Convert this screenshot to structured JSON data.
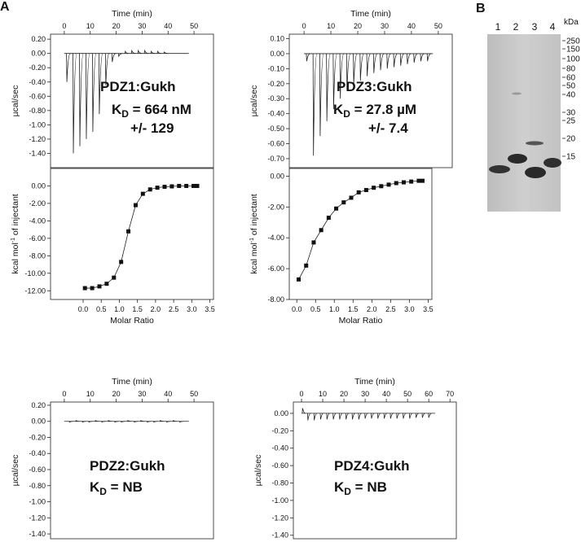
{
  "panel_label_a": "A",
  "chart_data": [
    {
      "type": "itc_raw",
      "x_label": "Time (min)",
      "y_label": "µcal/sec",
      "xlim": [
        -5.3,
        57.5
      ],
      "xticks": [
        0,
        10,
        20,
        30,
        40,
        50
      ],
      "ylim": [
        -1.6,
        0.27
      ],
      "yticks": [
        {
          "value": 0.2,
          "label": "0.20"
        },
        {
          "value": 0,
          "label": "0.00"
        },
        {
          "value": -0.2,
          "label": "-0.20"
        },
        {
          "value": -0.4,
          "label": "-0.40"
        },
        {
          "value": -0.6,
          "label": "-0.60"
        },
        {
          "value": -0.8,
          "label": "-0.80"
        },
        {
          "value": -1.0,
          "label": "-1.00"
        },
        {
          "value": -1.2,
          "label": "-1.20"
        },
        {
          "value": -1.4,
          "label": "-1.40"
        }
      ],
      "trace_span": [
        0,
        48
      ],
      "x": [
        1,
        3.5,
        6,
        8.5,
        11,
        13.5,
        16,
        18.5,
        21,
        23.5,
        26,
        28.5,
        31,
        33.5,
        36,
        38.5
      ],
      "values": [
        -0.4,
        -1.4,
        -1.3,
        -1.2,
        -1.1,
        -0.85,
        -0.45,
        -0.12,
        -0.04,
        0.03,
        0.04,
        0.04,
        0.04,
        0.03,
        0.03,
        0.02
      ],
      "annotation": {
        "name": "PDZ1:Gukh",
        "kd_symbol": "K",
        "kd_subscript": "D",
        "kd_value": " = 664 nM",
        "error": "+/- 129"
      }
    },
    {
      "type": "isotherm",
      "x_label": "Molar Ratio",
      "y_label": "kcal mol",
      "y_label_sup": "-1",
      "y_label_rest": " of injectant",
      "xlim": [
        -0.9,
        3.6
      ],
      "xticks": [
        {
          "value": 0,
          "label": "0.0"
        },
        {
          "value": 0.5,
          "label": "0.5"
        },
        {
          "value": 1,
          "label": "1.0"
        },
        {
          "value": 1.5,
          "label": "1.5"
        },
        {
          "value": 2,
          "label": "2.0"
        },
        {
          "value": 2.5,
          "label": "2.5"
        },
        {
          "value": 3,
          "label": "3.0"
        },
        {
          "value": 3.5,
          "label": "3.5"
        }
      ],
      "ylim": [
        -13,
        2
      ],
      "yticks": [
        {
          "value": 0,
          "label": "0.00"
        },
        {
          "value": -2,
          "label": "-2.00"
        },
        {
          "value": -4,
          "label": "-4.00"
        },
        {
          "value": -6,
          "label": "-6.00"
        },
        {
          "value": -8,
          "label": "-8.00"
        },
        {
          "value": -10,
          "label": "-10.00"
        },
        {
          "value": -12,
          "label": "-12.00"
        }
      ],
      "x": [
        0.05,
        0.25,
        0.45,
        0.65,
        0.85,
        1.05,
        1.25,
        1.45,
        1.65,
        1.85,
        2.05,
        2.25,
        2.45,
        2.65,
        2.85,
        3.05,
        3.15
      ],
      "values": [
        -11.7,
        -11.7,
        -11.5,
        -11.2,
        -10.5,
        -8.7,
        -5.2,
        -2.2,
        -0.9,
        -0.4,
        -0.2,
        -0.1,
        -0.05,
        0,
        0,
        0,
        0
      ]
    },
    {
      "type": "itc_raw",
      "x_label": "Time (min)",
      "y_label": "µcal/sec",
      "xlim": [
        -5.5,
        55.2
      ],
      "xticks": [
        0,
        10,
        20,
        30,
        40,
        50
      ],
      "ylim": [
        -0.76,
        0.13
      ],
      "yticks": [
        {
          "value": 0.1,
          "label": "0.10"
        },
        {
          "value": 0,
          "label": "0.00"
        },
        {
          "value": -0.1,
          "label": "-0.10"
        },
        {
          "value": -0.2,
          "label": "-0.20"
        },
        {
          "value": -0.3,
          "label": "-0.30"
        },
        {
          "value": -0.4,
          "label": "-0.40"
        },
        {
          "value": -0.5,
          "label": "-0.50"
        },
        {
          "value": -0.6,
          "label": "-0.60"
        },
        {
          "value": -0.7,
          "label": "-0.70"
        }
      ],
      "trace_span": [
        0,
        48
      ],
      "x": [
        1,
        3.5,
        6,
        8.5,
        11,
        13.5,
        16,
        18.5,
        21,
        23.5,
        26,
        28.5,
        31,
        33.5,
        36,
        38.5,
        41,
        43.5,
        46
      ],
      "values": [
        -0.05,
        -0.68,
        -0.55,
        -0.45,
        -0.37,
        -0.3,
        -0.25,
        -0.21,
        -0.18,
        -0.15,
        -0.13,
        -0.11,
        -0.1,
        -0.09,
        -0.08,
        -0.07,
        -0.06,
        -0.05,
        -0.05
      ],
      "annotation": {
        "name": "PDZ3:Gukh",
        "kd_symbol": "K",
        "kd_subscript": "D",
        "kd_value": " = 27.8 µM",
        "error": "+/- 7.4"
      }
    },
    {
      "type": "isotherm",
      "x_label": "Molar Ratio",
      "y_label": "kcal mol",
      "y_label_sup": "-1",
      "y_label_rest": " of injectant",
      "xlim": [
        -0.2,
        3.6
      ],
      "xticks": [
        {
          "value": 0,
          "label": "0.0"
        },
        {
          "value": 0.5,
          "label": "0.5"
        },
        {
          "value": 1,
          "label": "1.0"
        },
        {
          "value": 1.5,
          "label": "1.5"
        },
        {
          "value": 2,
          "label": "2.0"
        },
        {
          "value": 2.5,
          "label": "2.5"
        },
        {
          "value": 3,
          "label": "3.0"
        },
        {
          "value": 3.5,
          "label": "3.5"
        }
      ],
      "ylim": [
        -8,
        0.5
      ],
      "yticks": [
        {
          "value": 0,
          "label": "0.00"
        },
        {
          "value": -2,
          "label": "-2.00"
        },
        {
          "value": -4,
          "label": "-4.00"
        },
        {
          "value": -6,
          "label": "-6.00"
        },
        {
          "value": -8,
          "label": "-8.00"
        }
      ],
      "x": [
        0.05,
        0.25,
        0.45,
        0.65,
        0.85,
        1.05,
        1.25,
        1.45,
        1.65,
        1.85,
        2.05,
        2.25,
        2.45,
        2.65,
        2.85,
        3.05,
        3.25,
        3.35
      ],
      "values": [
        -6.7,
        -5.8,
        -4.3,
        -3.5,
        -2.7,
        -2.1,
        -1.7,
        -1.4,
        -1.05,
        -0.9,
        -0.75,
        -0.65,
        -0.55,
        -0.45,
        -0.4,
        -0.35,
        -0.3,
        -0.3
      ]
    },
    {
      "type": "itc_raw",
      "x_label": "Time (min)",
      "y_label": "µcal/sec",
      "xlim": [
        -5.3,
        57.5
      ],
      "xticks": [
        0,
        10,
        20,
        30,
        40,
        50
      ],
      "ylim": [
        -1.46,
        0.24
      ],
      "yticks": [
        {
          "value": 0.2,
          "label": "0.20"
        },
        {
          "value": 0,
          "label": "0.00"
        },
        {
          "value": -0.2,
          "label": "-0.20"
        },
        {
          "value": -0.4,
          "label": "-0.40"
        },
        {
          "value": -0.6,
          "label": "-0.60"
        },
        {
          "value": -0.8,
          "label": "-0.80"
        },
        {
          "value": -1.0,
          "label": "-1.00"
        },
        {
          "value": -1.2,
          "label": "-1.20"
        },
        {
          "value": -1.4,
          "label": "-1.40"
        }
      ],
      "trace_span": [
        0,
        48
      ],
      "x": [
        2,
        4.5,
        7,
        9.5,
        12,
        14.5,
        17,
        19.5,
        22,
        24.5,
        27,
        29.5,
        32,
        34.5,
        37,
        39.5,
        42,
        44.5
      ],
      "values": [
        -0.01,
        0.01,
        -0.01,
        -0.01,
        0.01,
        -0.01,
        0.01,
        -0.01,
        -0.01,
        0.01,
        -0.01,
        0.01,
        -0.01,
        -0.01,
        0.01,
        -0.01,
        0.01,
        -0.01
      ],
      "annotation": {
        "name": "PDZ2:Gukh",
        "kd_symbol": "K",
        "kd_subscript": "D",
        "kd_value": " = NB"
      }
    },
    {
      "type": "itc_raw",
      "x_label": "Time (min)",
      "y_label": "µcal/sec",
      "xlim": [
        -3.85,
        73
      ],
      "xticks": [
        0,
        10,
        20,
        30,
        40,
        50,
        60,
        70
      ],
      "ylim": [
        -1.44,
        0.13
      ],
      "yticks": [
        {
          "value": 0,
          "label": "0.00"
        },
        {
          "value": -0.2,
          "label": "-0.20"
        },
        {
          "value": -0.4,
          "label": "-0.40"
        },
        {
          "value": -0.6,
          "label": "-0.60"
        },
        {
          "value": -0.8,
          "label": "-0.80"
        },
        {
          "value": -1.0,
          "label": "-1.00"
        },
        {
          "value": -1.2,
          "label": "-1.20"
        },
        {
          "value": -1.4,
          "label": "-1.40"
        }
      ],
      "trace_span": [
        0,
        63
      ],
      "x": [
        0.5,
        3,
        6,
        9,
        12,
        15,
        18,
        21,
        24,
        27,
        30,
        33,
        36,
        39,
        42,
        45,
        48,
        51,
        54,
        57,
        60
      ],
      "values": [
        0.06,
        -0.08,
        -0.08,
        -0.07,
        -0.07,
        -0.07,
        -0.07,
        -0.07,
        -0.07,
        -0.07,
        -0.06,
        -0.06,
        -0.06,
        -0.06,
        -0.06,
        -0.06,
        -0.06,
        -0.06,
        -0.05,
        -0.05,
        -0.05
      ],
      "annotation": {
        "name": "PDZ4:Gukh",
        "kd_symbol": "K",
        "kd_subscript": "D",
        "kd_value": " = NB"
      }
    }
  ],
  "gel": {
    "panel_label": "B",
    "unit": "kDa",
    "lanes": [
      "1",
      "2",
      "3",
      "4"
    ],
    "markers": [
      "250",
      "150",
      "100",
      "80",
      "60",
      "50",
      "40",
      "30",
      "25",
      "20",
      "15"
    ]
  }
}
